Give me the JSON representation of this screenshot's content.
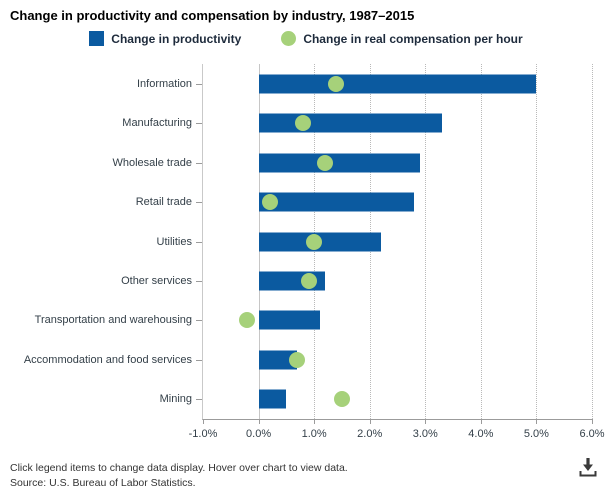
{
  "title": "Change in productivity and compensation by industry, 1987–2015",
  "legend": [
    {
      "label": "Change in productivity",
      "color": "#0b5aa0",
      "shape": "square"
    },
    {
      "label": "Change in real compensation per hour",
      "color": "#a6d17a",
      "shape": "circle"
    }
  ],
  "footer": {
    "line1": "Click legend items to change data display. Hover over chart to view data.",
    "line2": "Source: U.S. Bureau of Labor Statistics."
  },
  "chart_data": {
    "type": "bar",
    "orientation": "horizontal",
    "title": "Change in productivity and compensation by industry, 1987–2015",
    "categories": [
      "Information",
      "Manufacturing",
      "Wholesale trade",
      "Retail trade",
      "Utilities",
      "Other services",
      "Transportation and warehousing",
      "Accommodation and food services",
      "Mining"
    ],
    "series": [
      {
        "name": "Change in productivity",
        "render": "bar",
        "color": "#0b5aa0",
        "values": [
          5.0,
          3.3,
          2.9,
          2.8,
          2.2,
          1.2,
          1.1,
          0.7,
          0.5
        ]
      },
      {
        "name": "Change in real compensation per hour",
        "render": "dot",
        "color": "#a6d17a",
        "values": [
          1.4,
          0.8,
          1.2,
          0.2,
          1.0,
          0.9,
          -0.2,
          0.7,
          1.5
        ]
      }
    ],
    "xlim": [
      -1,
      6
    ],
    "xtick_step": 1,
    "xtick_labels": [
      "-1.0%",
      "0.0%",
      "1.0%",
      "2.0%",
      "3.0%",
      "4.0%",
      "5.0%",
      "6.0%"
    ],
    "grid": "vertical-dotted",
    "legend_position": "top"
  }
}
